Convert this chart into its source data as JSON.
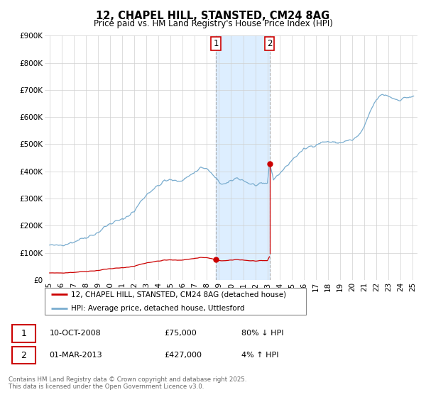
{
  "title": "12, CHAPEL HILL, STANSTED, CM24 8AG",
  "subtitle": "Price paid vs. HM Land Registry's House Price Index (HPI)",
  "ylim": [
    0,
    900000
  ],
  "yticks": [
    0,
    100000,
    200000,
    300000,
    400000,
    500000,
    600000,
    700000,
    800000,
    900000
  ],
  "ytick_labels": [
    "£0",
    "£100K",
    "£200K",
    "£300K",
    "£400K",
    "£500K",
    "£600K",
    "£700K",
    "£800K",
    "£900K"
  ],
  "sale1_x": 2008.75,
  "sale1_price": 75000,
  "sale2_x": 2013.17,
  "sale2_price": 427000,
  "legend_line1": "12, CHAPEL HILL, STANSTED, CM24 8AG (detached house)",
  "legend_line2": "HPI: Average price, detached house, Uttlesford",
  "line_color_price": "#cc0000",
  "line_color_hpi": "#7aadcf",
  "shade_color": "#ddeeff",
  "vline_color": "#aaaaaa",
  "footnote": "Contains HM Land Registry data © Crown copyright and database right 2025.\nThis data is licensed under the Open Government Licence v3.0.",
  "xmin": 1994.6,
  "xmax": 2025.4,
  "xticks": [
    1995,
    1996,
    1997,
    1998,
    1999,
    2000,
    2001,
    2002,
    2003,
    2004,
    2005,
    2006,
    2007,
    2008,
    2009,
    2010,
    2011,
    2012,
    2013,
    2014,
    2015,
    2016,
    2017,
    2018,
    2019,
    2020,
    2021,
    2022,
    2023,
    2024,
    2025
  ],
  "xtick_labels": [
    "95",
    "96",
    "97",
    "98",
    "99",
    "00",
    "01",
    "02",
    "03",
    "04",
    "05",
    "06",
    "07",
    "08",
    "09",
    "10",
    "11",
    "12",
    "13",
    "14",
    "15",
    "16",
    "17",
    "18",
    "19",
    "20",
    "21",
    "22",
    "23",
    "24",
    "25"
  ]
}
